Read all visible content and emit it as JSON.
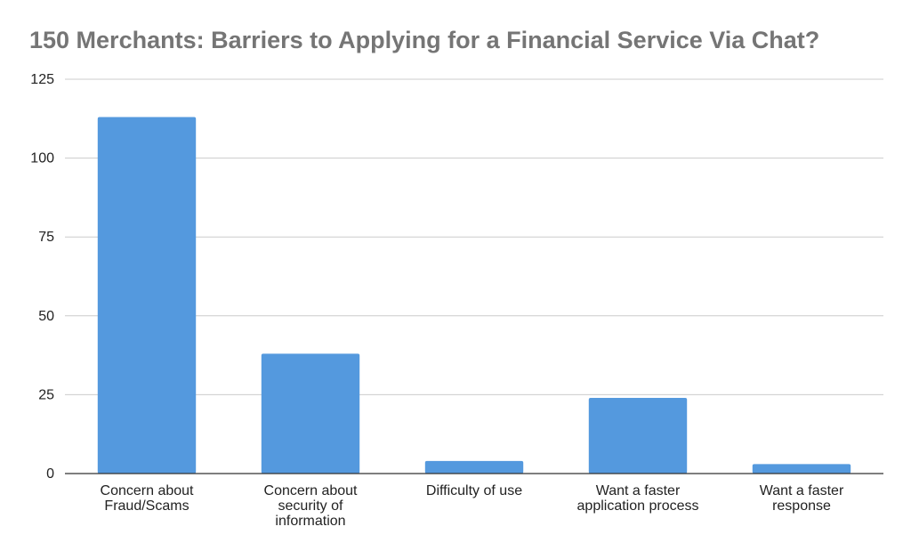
{
  "chart_data": {
    "type": "bar",
    "title": "150 Merchants: Barriers to Applying for a Financial Service Via Chat?",
    "xlabel": "",
    "ylabel": "",
    "categories": [
      [
        "Concern about",
        "Fraud/Scams"
      ],
      [
        "Concern about",
        "security of",
        "information"
      ],
      [
        "Difficulty of use"
      ],
      [
        "Want a faster",
        "application process"
      ],
      [
        "Want a faster",
        "response"
      ]
    ],
    "values": [
      113,
      38,
      4,
      24,
      3
    ],
    "ylim": [
      0,
      125
    ],
    "yticks": [
      0,
      25,
      50,
      75,
      100,
      125
    ],
    "bar_color": "#5499de",
    "grid": true,
    "legend": "none"
  }
}
